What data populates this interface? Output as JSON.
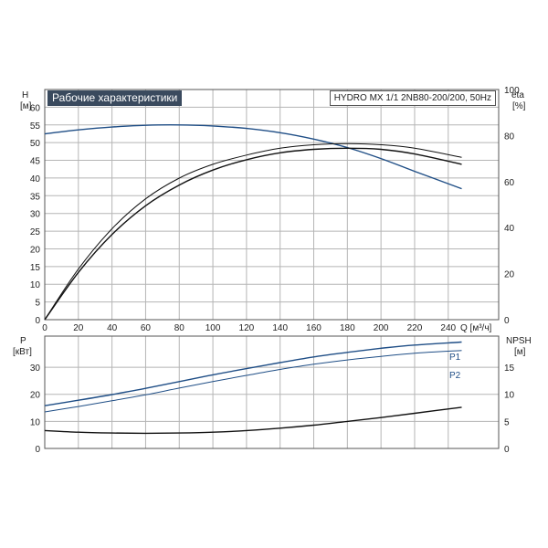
{
  "title": "Рабочие характеристики",
  "model": "HYDRO MX 1/1 2NB80-200/200, 50Hz",
  "colors": {
    "blue": "#1f4e86",
    "black": "#111111",
    "grid": "#b5b5b5"
  },
  "chart_data": [
    {
      "type": "line",
      "panel": "upper",
      "left_axis": {
        "label": "H",
        "unit": "[м]",
        "ticks": [
          0,
          5,
          10,
          15,
          20,
          25,
          30,
          35,
          40,
          45,
          50,
          55,
          60
        ],
        "ylim": [
          0,
          65
        ]
      },
      "right_axis": {
        "label": "eta",
        "unit": "[%]",
        "ticks": [
          0,
          20,
          40,
          60,
          80,
          100
        ],
        "ylim": [
          0,
          100
        ]
      },
      "x_axis": {
        "label": "Q [м³/ч]",
        "ticks": [
          0,
          20,
          40,
          60,
          80,
          100,
          120,
          140,
          160,
          180,
          200,
          220,
          240
        ],
        "xlim": [
          0,
          270
        ]
      },
      "series": [
        {
          "axis": "left",
          "color": "blue",
          "x": [
            0,
            20,
            40,
            60,
            80,
            100,
            120,
            140,
            160,
            180,
            200,
            220,
            248
          ],
          "y": [
            52.5,
            53.6,
            54.4,
            54.9,
            55.0,
            54.7,
            54.0,
            52.8,
            51.0,
            48.6,
            45.5,
            41.9,
            37.0
          ]
        },
        {
          "axis": "right",
          "color": "black",
          "x": [
            0,
            20,
            40,
            60,
            80,
            100,
            120,
            140,
            160,
            180,
            200,
            220,
            248
          ],
          "y": [
            0,
            20.5,
            37,
            49.5,
            58.5,
            65,
            69.5,
            72.5,
            74,
            74.5,
            74,
            72,
            67.5
          ]
        },
        {
          "axis": "right",
          "color": "black",
          "x": [
            0,
            20,
            40,
            60,
            80,
            100,
            120,
            140,
            160,
            180,
            200,
            220,
            248
          ],
          "y": [
            0,
            22,
            39.5,
            52.5,
            61.5,
            67.5,
            71.5,
            74.5,
            76,
            76.5,
            76,
            74.5,
            70.5
          ]
        }
      ]
    },
    {
      "type": "line",
      "panel": "lower",
      "left_axis": {
        "label": "P",
        "unit": "[кВт]",
        "ticks": [
          0,
          10,
          20,
          30
        ],
        "ylim": [
          0,
          41.5
        ]
      },
      "right_axis": {
        "label": "NPSH",
        "unit": "[м]",
        "ticks": [
          0,
          5,
          10,
          15
        ],
        "ylim": [
          0,
          20.75
        ]
      },
      "x_axis": {
        "ticks": [
          0,
          20,
          40,
          60,
          80,
          100,
          120,
          140,
          160,
          180,
          200,
          220,
          240
        ],
        "xlim": [
          0,
          270
        ]
      },
      "series": [
        {
          "name": "P1",
          "axis": "left",
          "color": "blue",
          "x": [
            0,
            20,
            40,
            60,
            80,
            100,
            120,
            140,
            160,
            180,
            200,
            220,
            248
          ],
          "y": [
            15.8,
            17.8,
            19.9,
            22.2,
            24.7,
            27.2,
            29.5,
            31.7,
            33.8,
            35.5,
            37.0,
            38.2,
            39.3
          ]
        },
        {
          "name": "P2",
          "axis": "left",
          "color": "blue",
          "x": [
            0,
            20,
            40,
            60,
            80,
            100,
            120,
            140,
            160,
            180,
            200,
            220,
            248
          ],
          "y": [
            13.5,
            15.5,
            17.6,
            19.8,
            22.3,
            24.7,
            27.0,
            29.2,
            31.1,
            32.7,
            34.0,
            35.2,
            36.2
          ]
        },
        {
          "axis": "right",
          "color": "black",
          "x": [
            0,
            20,
            40,
            60,
            80,
            100,
            120,
            140,
            160,
            180,
            200,
            220,
            248
          ],
          "y": [
            3.3,
            3.0,
            2.85,
            2.8,
            2.85,
            3.0,
            3.3,
            3.75,
            4.3,
            5.0,
            5.7,
            6.5,
            7.6
          ]
        }
      ]
    }
  ]
}
